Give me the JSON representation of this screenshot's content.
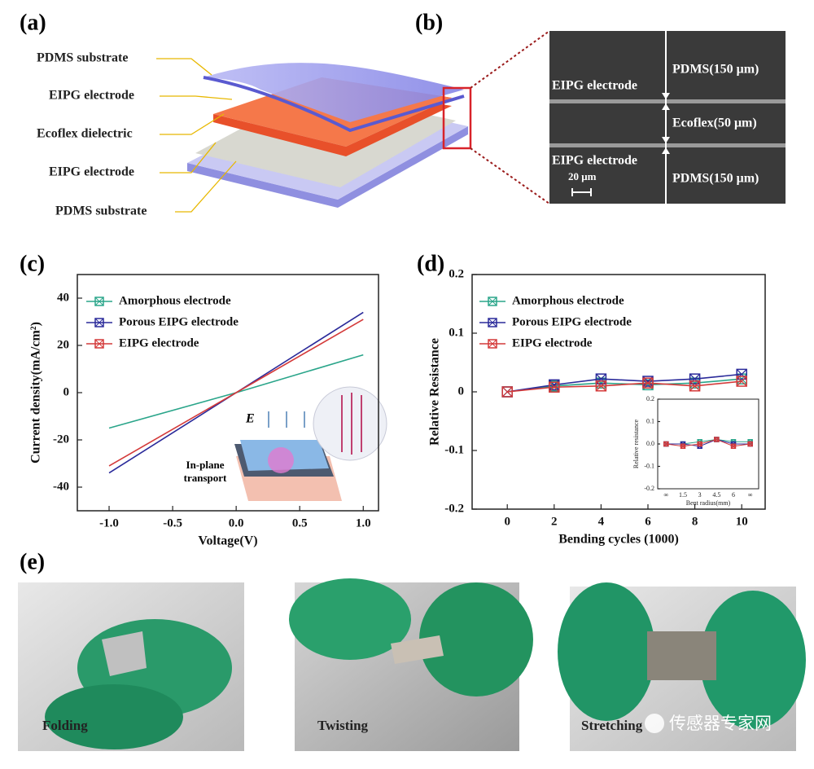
{
  "panel_labels": [
    "(a)",
    "(b)",
    "(c)",
    "(d)",
    "(e)"
  ],
  "panel_a": {
    "layers": [
      "PDMS substrate",
      "EIPG electrode",
      "Ecoflex dielectric",
      "EIPG electrode",
      "PDMS substrate"
    ]
  },
  "panel_b": {
    "labels": [
      "EIPG electrode",
      "PDMS(150 μm)",
      "Ecoflex(50 μm)",
      "EIPG electrode",
      "PDMS(150 μm)"
    ],
    "scale_bar": "20 μm"
  },
  "chart_data": [
    {
      "type": "line",
      "x_label": "Voltage(V)",
      "y_label": "Current density(mA/cm²)",
      "x": [
        -1.0,
        0,
        1.0
      ],
      "series": [
        {
          "name": "Amorphous electrode",
          "color": "#2aa58a",
          "values": [
            -15,
            0,
            16
          ]
        },
        {
          "name": "Porous EIPG electrode",
          "color": "#2a2a9a",
          "values": [
            -34,
            0,
            34
          ]
        },
        {
          "name": "EIPG electrode",
          "color": "#d43a3a",
          "values": [
            -31,
            0,
            31
          ]
        }
      ],
      "xlim": [
        -1.25,
        1.12
      ],
      "ylim": [
        -50,
        50
      ],
      "xticks": [
        {
          "value": -1,
          "label": "-1.0"
        },
        -0.5,
        {
          "value": 0,
          "label": "0.0"
        },
        0.5,
        {
          "value": 1,
          "label": "1.0"
        }
      ],
      "yticks": [
        -40,
        -20,
        0,
        20,
        40
      ],
      "annotations": [
        "E",
        "In-plane",
        "transport"
      ]
    },
    {
      "type": "line",
      "markers": true,
      "x_label": "Bending cycles (1000)",
      "y_label": "Relative Resistance",
      "x": [
        0,
        2,
        4,
        6,
        8,
        10
      ],
      "series": [
        {
          "name": "Amorphous electrode",
          "color": "#2aa58a",
          "values": [
            0,
            0.01,
            0.015,
            0.012,
            0.015,
            0.022
          ]
        },
        {
          "name": "Porous EIPG electrode",
          "color": "#2a2a9a",
          "values": [
            0,
            0.012,
            0.022,
            0.018,
            0.022,
            0.03
          ]
        },
        {
          "name": "EIPG electrode",
          "color": "#d43a3a",
          "values": [
            0,
            0.008,
            0.01,
            0.015,
            0.01,
            0.018
          ]
        }
      ],
      "xlim": [
        -1.5,
        11
      ],
      "ylim": [
        -0.2,
        0.2
      ],
      "xticks": [
        0,
        2,
        4,
        6,
        8,
        10
      ],
      "yticks": [
        -0.2,
        -0.1,
        0,
        0.1,
        0.2
      ]
    },
    {
      "type": "line",
      "markers": true,
      "x_label": "Bent radius(mm)",
      "y_label": "Relative resistance",
      "categories": [
        "∞",
        "1.5",
        "3",
        "4.5",
        "6",
        "∞"
      ],
      "series": [
        {
          "color": "#2aa58a",
          "values": [
            0,
            0,
            0.01,
            0.02,
            0.01,
            0.01
          ]
        },
        {
          "color": "#2a2a9a",
          "values": [
            0,
            0,
            -0.01,
            0.02,
            0,
            0
          ]
        },
        {
          "color": "#d43a3a",
          "values": [
            0,
            -0.01,
            0,
            0.02,
            -0.01,
            0
          ]
        }
      ],
      "ylim": [
        -0.2,
        0.2
      ],
      "yticks": [
        -0.2,
        -0.1,
        {
          "value": 0,
          "label": "0.0"
        },
        0.1,
        0.2
      ]
    }
  ],
  "panel_e": {
    "captions": [
      "Folding",
      "Twisting",
      "Stretching"
    ]
  },
  "watermark": "传感器专家网"
}
